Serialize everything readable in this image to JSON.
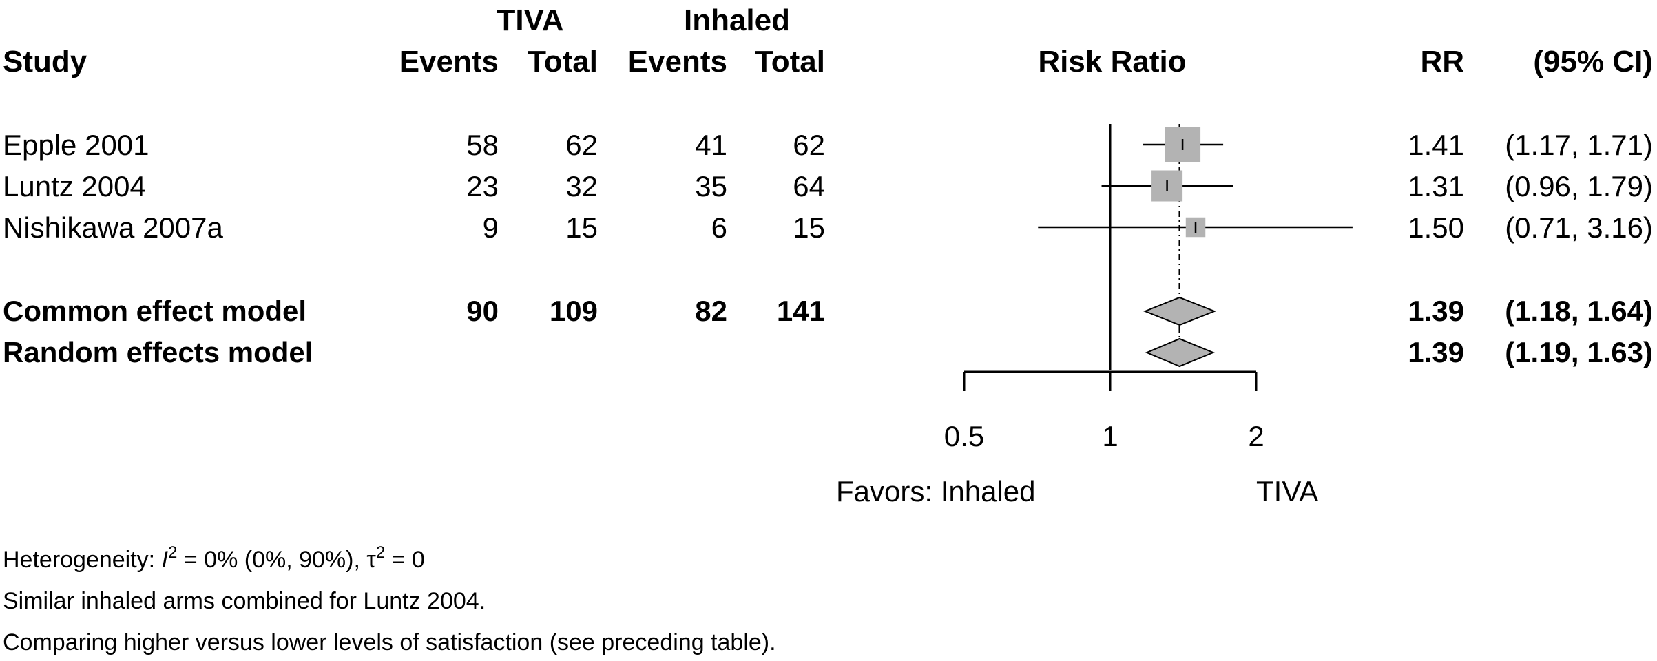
{
  "header": {
    "group1": "TIVA",
    "group2": "Inhaled",
    "study": "Study",
    "events": "Events",
    "total": "Total",
    "risk_ratio": "Risk Ratio",
    "rr": "RR",
    "ci": "(95% CI)"
  },
  "chart_data": {
    "type": "forest",
    "measure": "Risk Ratio",
    "scale": "log",
    "xlim": [
      0.5,
      2
    ],
    "xticks": [
      {
        "value": 0.5,
        "label": "0.5"
      },
      {
        "value": 1,
        "label": "1"
      },
      {
        "value": 2,
        "label": "2"
      }
    ],
    "null_value": 1,
    "pooled_line_value": 1.39,
    "favors_label": "Favors: Inhaled",
    "favors_right": "TIVA",
    "studies": [
      {
        "name": "Epple 2001",
        "e1": "58",
        "n1": "62",
        "e2": "41",
        "n2": "62",
        "rr": 1.41,
        "lo": 1.17,
        "hi": 1.71,
        "weight": 1.0,
        "rr_text": "1.41",
        "ci_text": "(1.17, 1.71)"
      },
      {
        "name": "Luntz 2004",
        "e1": "23",
        "n1": "32",
        "e2": "35",
        "n2": "64",
        "rr": 1.31,
        "lo": 0.96,
        "hi": 1.79,
        "weight": 0.75,
        "rr_text": "1.31",
        "ci_text": "(0.96, 1.79)"
      },
      {
        "name": "Nishikawa 2007a",
        "e1": "9",
        "n1": "15",
        "e2": "6",
        "n2": "15",
        "rr": 1.5,
        "lo": 0.71,
        "hi": 3.16,
        "weight": 0.3,
        "rr_text": "1.50",
        "ci_text": "(0.71, 3.16)"
      }
    ],
    "models": [
      {
        "name": "Common effect model",
        "e1": "90",
        "n1": "109",
        "e2": "82",
        "n2": "141",
        "rr": 1.39,
        "lo": 1.18,
        "hi": 1.64,
        "rr_text": "1.39",
        "ci_text": "(1.18, 1.64)"
      },
      {
        "name": "Random effects model",
        "e1": "",
        "n1": "",
        "e2": "",
        "n2": "",
        "rr": 1.39,
        "lo": 1.19,
        "hi": 1.63,
        "rr_text": "1.39",
        "ci_text": "(1.19, 1.63)"
      }
    ]
  },
  "footnotes": {
    "heterogeneity_prefix": "Heterogeneity: ",
    "i2_symbol": "I",
    "i2_value": " = 0% (0%, 90%), ",
    "tau_symbol": "τ",
    "tau_value": " = 0",
    "note1": "Similar inhaled arms combined for Luntz 2004.",
    "note2": "Comparing higher versus lower levels of satisfaction (see preceding table)."
  },
  "colors": {
    "box": "#b3b3b3",
    "diamond": "#b3b3b3",
    "line": "#000000"
  }
}
